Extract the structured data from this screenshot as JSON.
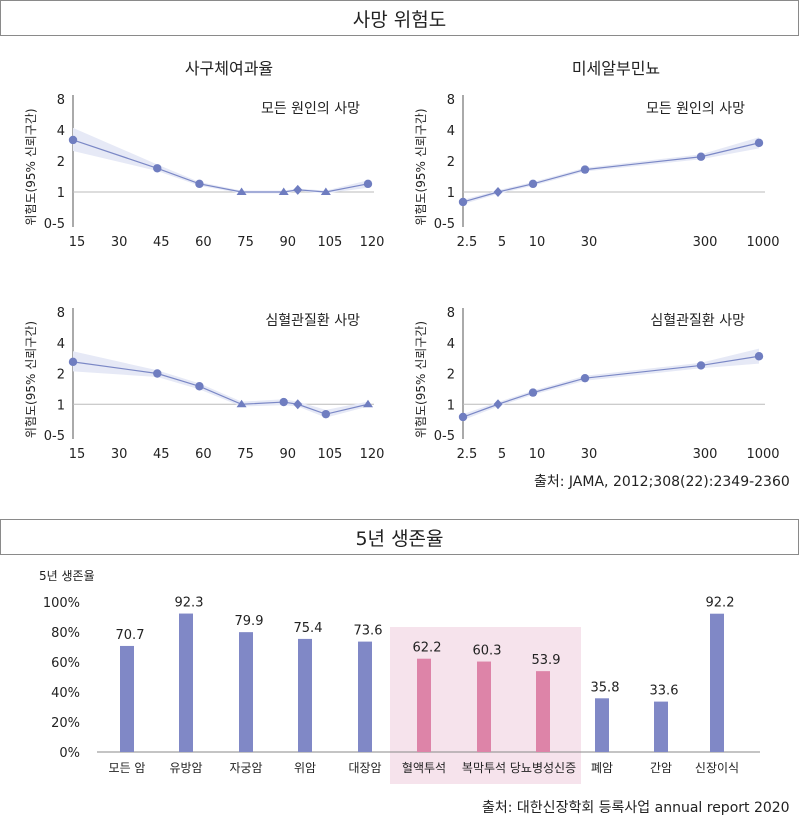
{
  "top": {
    "header": "사망 위험도",
    "column_titles": [
      "사구체여과율",
      "미세알부민뇨"
    ],
    "source": "출처: JAMA, 2012;308(22):2349-2360"
  },
  "bottom": {
    "header": "5년 생존율",
    "source": "출처: 대한신장학회 등록사업 annual report 2020"
  },
  "colors": {
    "line": "#7b88c6",
    "marker": "#6f7dc0",
    "band": "#e6e9f6",
    "bar": "#8088c6",
    "bar_highlight": "#dd84a8",
    "highlight_bg": "#f6e3ec"
  },
  "chart_data": [
    {
      "type": "line",
      "panel_title": "사구체여과율",
      "subtitle": "모든 원인의 사망",
      "ylabel": "위험도(95% 신뢰구간)",
      "xlabel": "",
      "x_ticks": [
        "15",
        "30",
        "45",
        "60",
        "75",
        "90",
        "105",
        "120"
      ],
      "y_ticks": [
        "0-5",
        "1",
        "2",
        "4",
        "8"
      ],
      "y_scale": "log2",
      "ylim": [
        0.5,
        8
      ],
      "xlim": [
        15,
        120
      ],
      "points": [
        {
          "x": 15,
          "y": 3.2,
          "marker": "circle"
        },
        {
          "x": 45,
          "y": 1.7,
          "marker": "circle"
        },
        {
          "x": 60,
          "y": 1.2,
          "marker": "circle"
        },
        {
          "x": 75,
          "y": 1.0,
          "marker": "triangle"
        },
        {
          "x": 90,
          "y": 1.0,
          "marker": "triangle"
        },
        {
          "x": 95,
          "y": 1.05,
          "marker": "diamond"
        },
        {
          "x": 105,
          "y": 1.0,
          "marker": "triangle"
        },
        {
          "x": 120,
          "y": 1.2,
          "marker": "circle"
        }
      ],
      "ci_upper": [
        4.2,
        1.85,
        1.25,
        1.03,
        1.03,
        1.08,
        1.03,
        1.3
      ],
      "ci_lower": [
        2.5,
        1.6,
        1.15,
        0.97,
        0.97,
        1.02,
        0.97,
        1.1
      ]
    },
    {
      "type": "line",
      "panel_title": "미세알부민뇨",
      "subtitle": "모든 원인의 사망",
      "ylabel": "위험도(95% 신뢰구간)",
      "xlabel": "",
      "x_ticks": [
        "2.5",
        "5",
        "10",
        "30",
        "300",
        "1000"
      ],
      "y_ticks": [
        "0-5",
        "1",
        "2",
        "4",
        "8"
      ],
      "y_scale": "log2",
      "ylim": [
        0.5,
        8
      ],
      "points": [
        {
          "x": 2.5,
          "y": 0.8,
          "marker": "circle"
        },
        {
          "x": 5,
          "y": 1.0,
          "marker": "diamond"
        },
        {
          "x": 10,
          "y": 1.2,
          "marker": "circle"
        },
        {
          "x": 30,
          "y": 1.65,
          "marker": "circle"
        },
        {
          "x": 300,
          "y": 2.2,
          "marker": "circle"
        },
        {
          "x": 1000,
          "y": 3.0,
          "marker": "circle"
        }
      ],
      "ci_upper": [
        0.84,
        1.04,
        1.25,
        1.72,
        2.32,
        3.4
      ],
      "ci_lower": [
        0.76,
        0.96,
        1.15,
        1.58,
        2.08,
        2.65
      ]
    },
    {
      "type": "line",
      "panel_title": "",
      "subtitle": "심혈관질환 사망",
      "ylabel": "위험도(95% 신뢰구간)",
      "xlabel": "",
      "x_ticks": [
        "15",
        "30",
        "45",
        "60",
        "75",
        "90",
        "105",
        "120"
      ],
      "y_ticks": [
        "0-5",
        "1",
        "2",
        "4",
        "8"
      ],
      "y_scale": "log2",
      "ylim": [
        0.5,
        8
      ],
      "xlim": [
        15,
        120
      ],
      "points": [
        {
          "x": 15,
          "y": 2.6,
          "marker": "circle"
        },
        {
          "x": 45,
          "y": 2.0,
          "marker": "circle"
        },
        {
          "x": 60,
          "y": 1.5,
          "marker": "circle"
        },
        {
          "x": 75,
          "y": 1.0,
          "marker": "triangle"
        },
        {
          "x": 90,
          "y": 1.05,
          "marker": "circle"
        },
        {
          "x": 95,
          "y": 1.0,
          "marker": "diamond"
        },
        {
          "x": 105,
          "y": 0.8,
          "marker": "circle"
        },
        {
          "x": 120,
          "y": 1.0,
          "marker": "triangle"
        }
      ],
      "ci_upper": [
        3.3,
        2.15,
        1.6,
        1.06,
        1.12,
        1.06,
        0.88,
        1.06
      ],
      "ci_lower": [
        2.1,
        1.85,
        1.4,
        0.95,
        0.98,
        0.95,
        0.74,
        0.95
      ]
    },
    {
      "type": "line",
      "panel_title": "",
      "subtitle": "심혈관질환 사망",
      "ylabel": "위험도(95% 신뢰구간)",
      "xlabel": "",
      "x_ticks": [
        "2.5",
        "5",
        "10",
        "30",
        "300",
        "1000"
      ],
      "y_ticks": [
        "0-5",
        "1",
        "2",
        "4",
        "8"
      ],
      "y_scale": "log2",
      "ylim": [
        0.5,
        8
      ],
      "points": [
        {
          "x": 2.5,
          "y": 0.75,
          "marker": "circle"
        },
        {
          "x": 5,
          "y": 1.0,
          "marker": "diamond"
        },
        {
          "x": 10,
          "y": 1.3,
          "marker": "circle"
        },
        {
          "x": 30,
          "y": 1.8,
          "marker": "circle"
        },
        {
          "x": 300,
          "y": 2.4,
          "marker": "circle"
        },
        {
          "x": 1000,
          "y": 2.95,
          "marker": "circle"
        }
      ],
      "ci_upper": [
        0.8,
        1.05,
        1.36,
        1.9,
        2.55,
        3.5
      ],
      "ci_lower": [
        0.7,
        0.95,
        1.24,
        1.7,
        2.25,
        2.5
      ]
    },
    {
      "type": "bar",
      "title": "5년 생존율",
      "ylabel": "5년 생존율",
      "xlabel": "",
      "y_ticks": [
        "0%",
        "20%",
        "40%",
        "60%",
        "80%",
        "100%"
      ],
      "ylim": [
        0,
        100
      ],
      "categories": [
        "모든 암",
        "유방암",
        "자궁암",
        "위암",
        "대장암",
        "혈액투석",
        "복막투석",
        "당뇨병성신증",
        "폐암",
        "간암",
        "신장이식"
      ],
      "values": [
        70.7,
        92.3,
        79.9,
        75.4,
        73.6,
        62.2,
        60.3,
        53.9,
        35.8,
        33.6,
        92.2
      ],
      "value_labels": [
        "70.7",
        "92.3",
        "79.9",
        "75.4",
        "73.6",
        "62.2",
        "60.3",
        "53.9",
        "35.8",
        "33.6",
        "92.2"
      ],
      "highlighted_categories": [
        "혈액투석",
        "복막투석",
        "당뇨병성신증"
      ]
    }
  ]
}
